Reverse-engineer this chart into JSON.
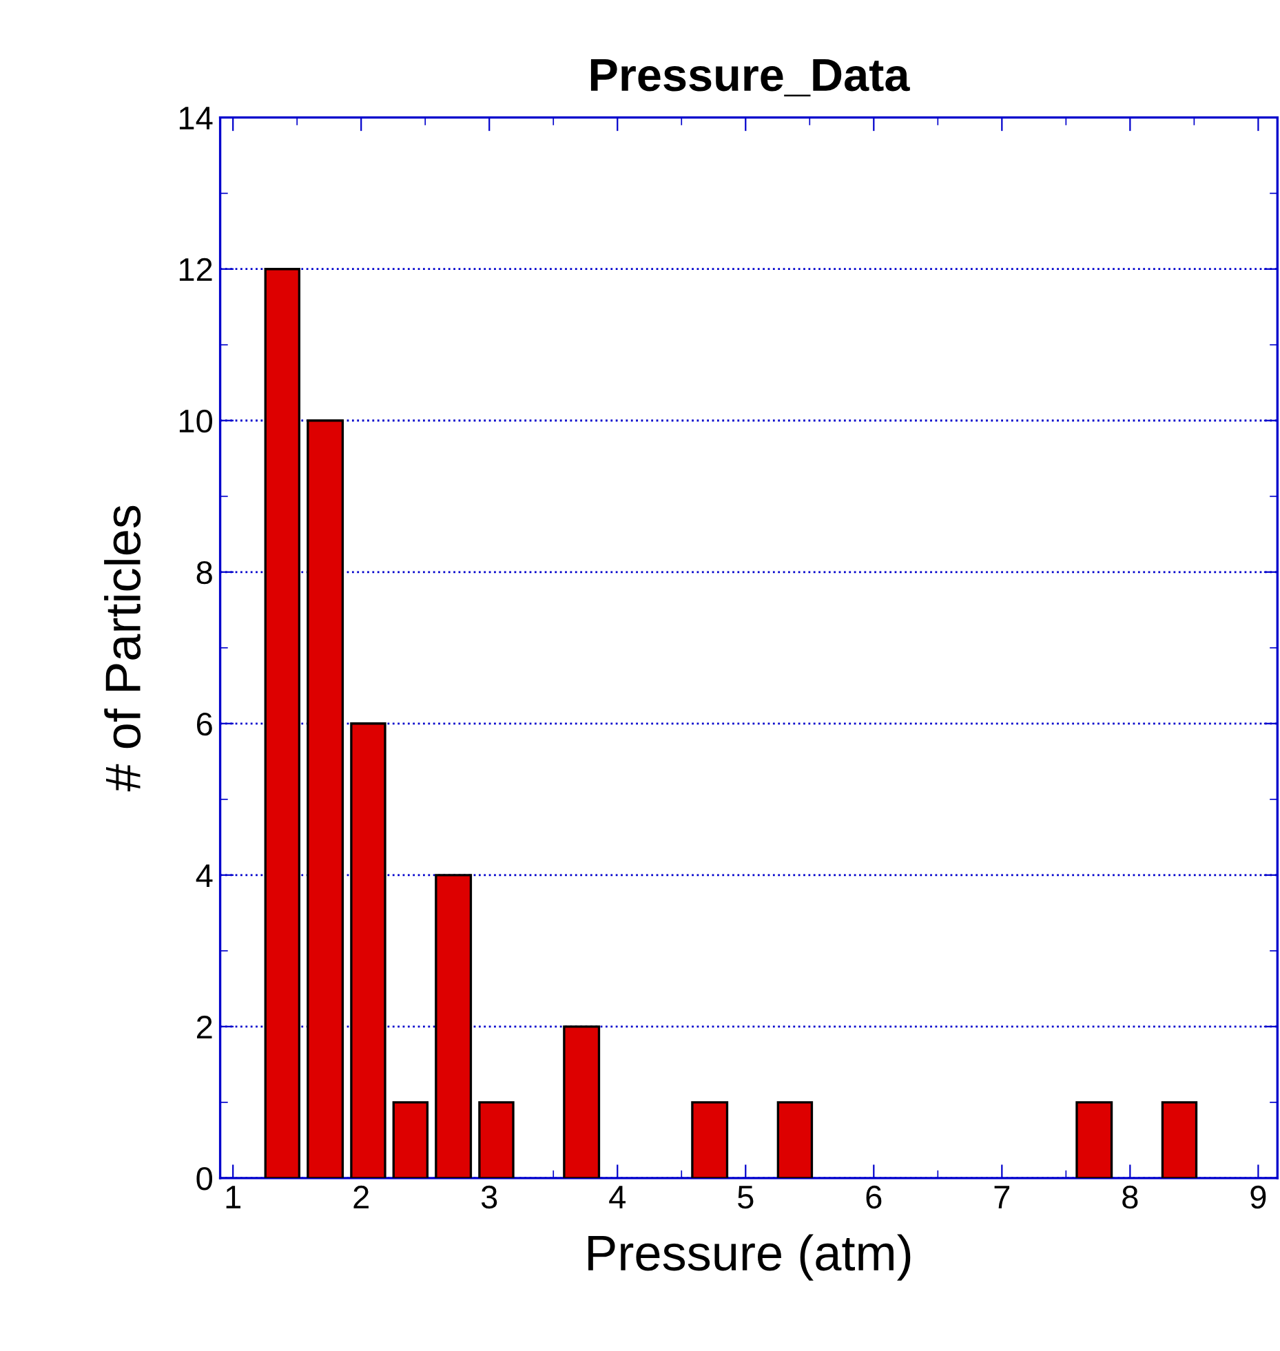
{
  "chart_data": {
    "type": "histogram",
    "title": "Pressure_Data",
    "xlabel": "Pressure (atm)",
    "ylabel": "# of Particles",
    "bins": [
      1.22,
      1.55,
      1.89,
      2.22,
      2.55,
      2.89,
      3.22,
      3.55,
      3.89,
      4.55,
      4.89,
      5.22,
      5.55,
      7.55,
      7.89,
      8.22,
      8.55
    ],
    "values": [
      12,
      10,
      6,
      1,
      4,
      1,
      0,
      2,
      0,
      1,
      0,
      1,
      0,
      1,
      0,
      1
    ],
    "color": "#dd0000",
    "xlim": [
      0.9,
      9.15
    ],
    "ylim": [
      0,
      14
    ],
    "xticks": [
      1,
      2,
      3,
      4,
      5,
      6,
      7,
      8,
      9
    ],
    "yticks": [
      0,
      2,
      4,
      6,
      8,
      10,
      12,
      14
    ],
    "grid": "y"
  }
}
